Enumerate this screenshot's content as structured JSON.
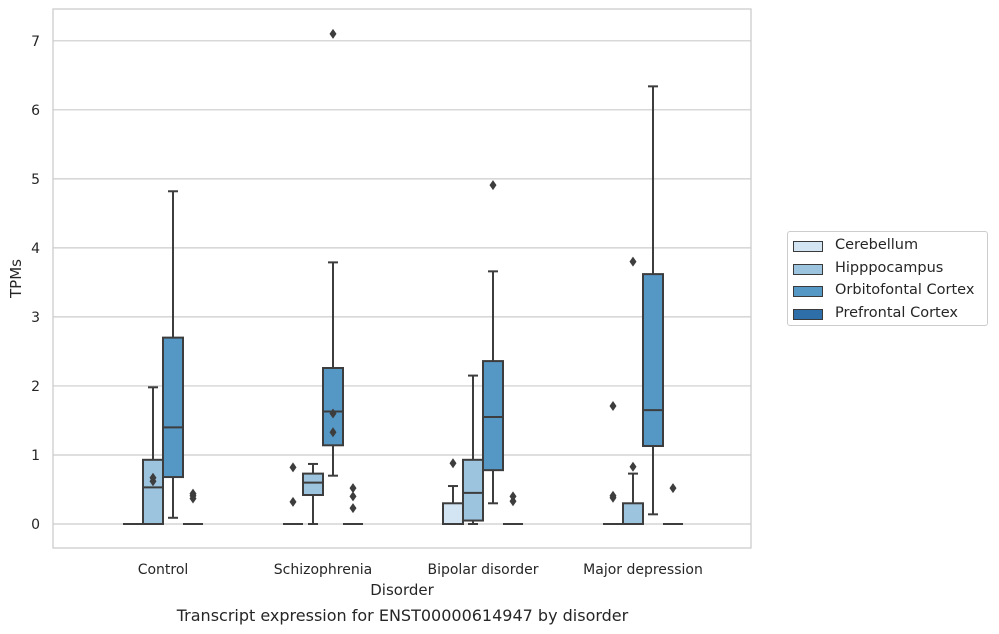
{
  "chart_data": {
    "type": "box",
    "caption": "Transcript expression for ENST00000614947 by disorder",
    "xlabel": "Disorder",
    "ylabel": "TPMs",
    "ylim": [
      -0.35,
      7.48
    ],
    "yticks": [
      0,
      1,
      2,
      3,
      4,
      5,
      6,
      7
    ],
    "grid": "horizontal",
    "legend_position": "right",
    "categories": [
      "Control",
      "Schizophrenia",
      "Bipolar disorder",
      "Major depression"
    ],
    "series": [
      {
        "name": "Cerebellum",
        "color": "#d3e4f2",
        "boxes": [
          {
            "q1": 0,
            "median": 0,
            "q3": 0,
            "whisker_low": 0,
            "whisker_high": 0,
            "outliers": []
          },
          {
            "q1": 0,
            "median": 0,
            "q3": 0,
            "whisker_low": 0,
            "whisker_high": 0,
            "outliers": [
              0.82,
              0.32
            ]
          },
          {
            "q1": 0,
            "median": 0,
            "q3": 0.3,
            "whisker_low": 0,
            "whisker_high": 0.55,
            "outliers": [
              0.88
            ]
          },
          {
            "q1": 0,
            "median": 0,
            "q3": 0,
            "whisker_low": 0,
            "whisker_high": 0,
            "outliers": [
              1.71,
              0.41,
              0.38
            ]
          }
        ]
      },
      {
        "name": "Hipppocampus",
        "color": "#9dc4de",
        "boxes": [
          {
            "q1": 0,
            "median": 0.53,
            "q3": 0.93,
            "whisker_low": 0,
            "whisker_high": 1.98,
            "outliers": [
              0.67,
              0.62
            ]
          },
          {
            "q1": 0.42,
            "median": 0.6,
            "q3": 0.73,
            "whisker_low": 0,
            "whisker_high": 0.87,
            "outliers": []
          },
          {
            "q1": 0.05,
            "median": 0.45,
            "q3": 0.93,
            "whisker_low": 0,
            "whisker_high": 2.15,
            "outliers": []
          },
          {
            "q1": 0,
            "median": 0,
            "q3": 0.3,
            "whisker_low": 0,
            "whisker_high": 0.73,
            "outliers": [
              3.8,
              0.83
            ]
          }
        ]
      },
      {
        "name": "Orbitofontal Cortex",
        "color": "#5597c5",
        "boxes": [
          {
            "q1": 0.68,
            "median": 1.4,
            "q3": 2.7,
            "whisker_low": 0.09,
            "whisker_high": 4.82,
            "outliers": []
          },
          {
            "q1": 1.14,
            "median": 1.63,
            "q3": 2.26,
            "whisker_low": 0.7,
            "whisker_high": 3.79,
            "outliers": [
              7.1,
              1.6,
              1.33
            ]
          },
          {
            "q1": 0.78,
            "median": 1.55,
            "q3": 2.36,
            "whisker_low": 0.3,
            "whisker_high": 3.66,
            "outliers": [
              4.91
            ]
          },
          {
            "q1": 1.13,
            "median": 1.65,
            "q3": 3.62,
            "whisker_low": 0.14,
            "whisker_high": 6.34,
            "outliers": []
          }
        ]
      },
      {
        "name": "Prefrontal Cortex",
        "color": "#2e6faa",
        "boxes": [
          {
            "q1": 0,
            "median": 0,
            "q3": 0,
            "whisker_low": 0,
            "whisker_high": 0,
            "outliers": [
              0.44,
              0.41,
              0.37
            ]
          },
          {
            "q1": 0,
            "median": 0,
            "q3": 0,
            "whisker_low": 0,
            "whisker_high": 0,
            "outliers": [
              0.52,
              0.4,
              0.23
            ]
          },
          {
            "q1": 0,
            "median": 0,
            "q3": 0,
            "whisker_low": 0,
            "whisker_high": 0,
            "outliers": [
              0.4,
              0.33
            ]
          },
          {
            "q1": 0,
            "median": 0,
            "q3": 0,
            "whisker_low": 0,
            "whisker_high": 0,
            "outliers": [
              0.52
            ]
          }
        ]
      }
    ]
  }
}
